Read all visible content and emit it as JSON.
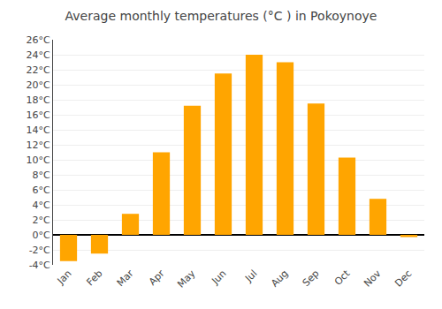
{
  "chart_data": {
    "type": "bar",
    "title": "Average monthly temperatures (°C ) in Pokoynoye",
    "categories": [
      "Jan",
      "Feb",
      "Mar",
      "Apr",
      "May",
      "Jun",
      "Jul",
      "Aug",
      "Sep",
      "Oct",
      "Nov",
      "Dec"
    ],
    "values": [
      -3.5,
      -2.5,
      2.8,
      11.0,
      17.2,
      21.5,
      24.0,
      23.0,
      17.5,
      10.3,
      4.8,
      -0.3
    ],
    "color": "#FFA500",
    "ylim": [
      -4,
      26
    ],
    "yticks": [
      {
        "value": -4,
        "label": "-4°C"
      },
      {
        "value": -2,
        "label": "-2°C"
      },
      {
        "value": 0,
        "label": "0°C"
      },
      {
        "value": 2,
        "label": "2°C"
      },
      {
        "value": 4,
        "label": "4°C"
      },
      {
        "value": 6,
        "label": "6°C"
      },
      {
        "value": 8,
        "label": "8°C"
      },
      {
        "value": 10,
        "label": "10°C"
      },
      {
        "value": 12,
        "label": "12°C"
      },
      {
        "value": 14,
        "label": "14°C"
      },
      {
        "value": 16,
        "label": "16°C"
      },
      {
        "value": 18,
        "label": "18°C"
      },
      {
        "value": 20,
        "label": "20°C"
      },
      {
        "value": 22,
        "label": "22°C"
      },
      {
        "value": 24,
        "label": "24°C"
      },
      {
        "value": 26,
        "label": "26°C"
      }
    ],
    "grid": true
  }
}
